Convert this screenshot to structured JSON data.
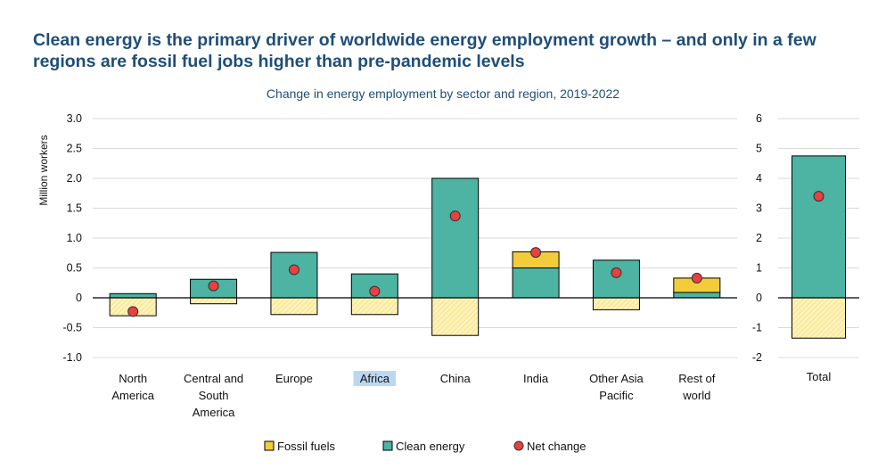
{
  "header": {
    "title": "Clean energy is the primary driver of worldwide energy employment growth – and only in a few regions are fossil fuel jobs higher than pre-pandemic levels",
    "subtitle": "Change in energy employment by sector and region, 2019-2022"
  },
  "colors": {
    "fossil": "#f3cc3c",
    "fossil_hatch": "#fbeb9a",
    "clean": "#4db3a2",
    "net": "#e8413f",
    "axis": "#000000",
    "grid": "#d9d9d9",
    "highlight": "#bcd7f2"
  },
  "chart_data": [
    {
      "type": "bar",
      "stacked": true,
      "title": "Change in energy employment by sector and region, 2019-2022",
      "ylabel": "Million workers",
      "ylim": [
        -1.0,
        3.0
      ],
      "yticks": [
        "3.0",
        "2.5",
        "2.0",
        "1.5",
        "1.0",
        "0.5",
        "0",
        "-0.5",
        "-1.0"
      ],
      "ytick_values": [
        3.0,
        2.5,
        2.0,
        1.5,
        1.0,
        0.5,
        0,
        -0.5,
        -1.0
      ],
      "categories": [
        [
          "North",
          "America"
        ],
        [
          "Central and",
          "South",
          "America"
        ],
        [
          "Europe"
        ],
        [
          "Africa"
        ],
        [
          "China"
        ],
        [
          "India"
        ],
        [
          "Other Asia",
          "Pacific"
        ],
        [
          "Rest of",
          "world"
        ]
      ],
      "highlighted_category": "Africa",
      "series": [
        {
          "name": "Fossil fuels",
          "kind": "fossil",
          "positive": [
            0,
            0,
            0,
            0,
            0,
            0.27,
            0,
            0.24
          ],
          "negative": [
            -0.3,
            -0.1,
            -0.28,
            -0.28,
            -0.63,
            0,
            -0.2,
            0
          ]
        },
        {
          "name": "Clean energy",
          "kind": "clean",
          "values": [
            0.07,
            0.31,
            0.76,
            0.4,
            2.0,
            0.5,
            0.63,
            0.09
          ]
        },
        {
          "name": "Net change",
          "kind": "net",
          "values": [
            -0.23,
            0.2,
            0.47,
            0.11,
            1.37,
            0.76,
            0.42,
            0.33
          ]
        }
      ]
    },
    {
      "type": "bar",
      "stacked": true,
      "ylim": [
        -2,
        6
      ],
      "yticks": [
        "6",
        "5",
        "4",
        "3",
        "2",
        "1",
        "0",
        "-1",
        "-2"
      ],
      "ytick_values": [
        6,
        5,
        4,
        3,
        2,
        1,
        0,
        -1,
        -2
      ],
      "categories": [
        [
          "Total"
        ]
      ],
      "series": [
        {
          "name": "Fossil fuels",
          "kind": "fossil",
          "positive": [
            0
          ],
          "negative": [
            -1.35
          ]
        },
        {
          "name": "Clean energy",
          "kind": "clean",
          "values": [
            4.75
          ]
        },
        {
          "name": "Net change",
          "kind": "net",
          "values": [
            3.4
          ]
        }
      ]
    }
  ],
  "legend": [
    {
      "label": "Fossil fuels",
      "kind": "fossil"
    },
    {
      "label": "Clean energy",
      "kind": "clean"
    },
    {
      "label": "Net change",
      "kind": "net"
    }
  ]
}
